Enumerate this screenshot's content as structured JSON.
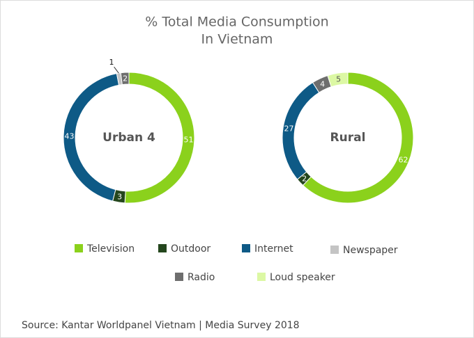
{
  "title": [
    "% Total Media Consumption",
    "In Vietnam"
  ],
  "chart_data": [
    {
      "type": "pie",
      "label": "Urban 4",
      "categories": [
        "Television",
        "Outdoor",
        "Internet",
        "Newspaper",
        "Radio"
      ],
      "values": [
        51,
        3,
        43,
        1,
        2
      ],
      "colors": [
        "#8bd11c",
        "#24461d",
        "#0e5a86",
        "#c4c4c4",
        "#6e6e6e"
      ]
    },
    {
      "type": "pie",
      "label": "Rural",
      "categories": [
        "Television",
        "Outdoor",
        "Internet",
        "Radio",
        "Loud speaker"
      ],
      "values": [
        62,
        2,
        27,
        4,
        5
      ],
      "colors": [
        "#8bd11c",
        "#24461d",
        "#0e5a86",
        "#6e6e6e",
        "#dcf8a4"
      ]
    }
  ],
  "legend": [
    {
      "name": "Television",
      "color": "#8bd11c"
    },
    {
      "name": "Outdoor",
      "color": "#24461d"
    },
    {
      "name": "Internet",
      "color": "#0e5a86"
    },
    {
      "name": "Newspaper",
      "color": "#c4c4c4"
    },
    {
      "name": "Radio",
      "color": "#6e6e6e"
    },
    {
      "name": "Loud speaker",
      "color": "#dcf8a4"
    }
  ],
  "source": "Source: Kantar Worldpanel Vietnam | Media Survey 2018"
}
